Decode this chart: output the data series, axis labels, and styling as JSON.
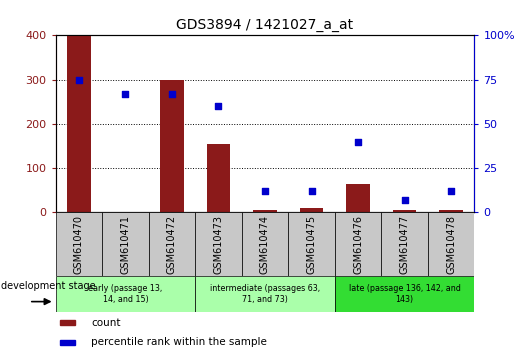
{
  "title": "GDS3894 / 1421027_a_at",
  "samples": [
    "GSM610470",
    "GSM610471",
    "GSM610472",
    "GSM610473",
    "GSM610474",
    "GSM610475",
    "GSM610476",
    "GSM610477",
    "GSM610478"
  ],
  "count_values": [
    400,
    0,
    300,
    155,
    5,
    10,
    65,
    5,
    5
  ],
  "percentile_values": [
    75,
    67,
    67,
    60,
    12,
    12,
    40,
    7,
    12
  ],
  "count_color": "#8B1A1A",
  "percentile_color": "#0000CC",
  "ylim_left": [
    0,
    400
  ],
  "ylim_right": [
    0,
    100
  ],
  "yticks_left": [
    0,
    100,
    200,
    300,
    400
  ],
  "yticks_right": [
    0,
    25,
    50,
    75,
    100
  ],
  "group_labels": [
    "early (passage 13,\n14, and 15)",
    "intermediate (passages 63,\n71, and 73)",
    "late (passage 136, 142, and\n143)"
  ],
  "group_ranges": [
    [
      0,
      2
    ],
    [
      3,
      5
    ],
    [
      6,
      8
    ]
  ],
  "group_colors": [
    "#aaffaa",
    "#aaffaa",
    "#33dd33"
  ],
  "legend_count_label": "count",
  "legend_percentile_label": "percentile rank within the sample",
  "dev_stage_label": "development stage",
  "sample_box_color": "#c8c8c8",
  "bar_width": 0.5
}
